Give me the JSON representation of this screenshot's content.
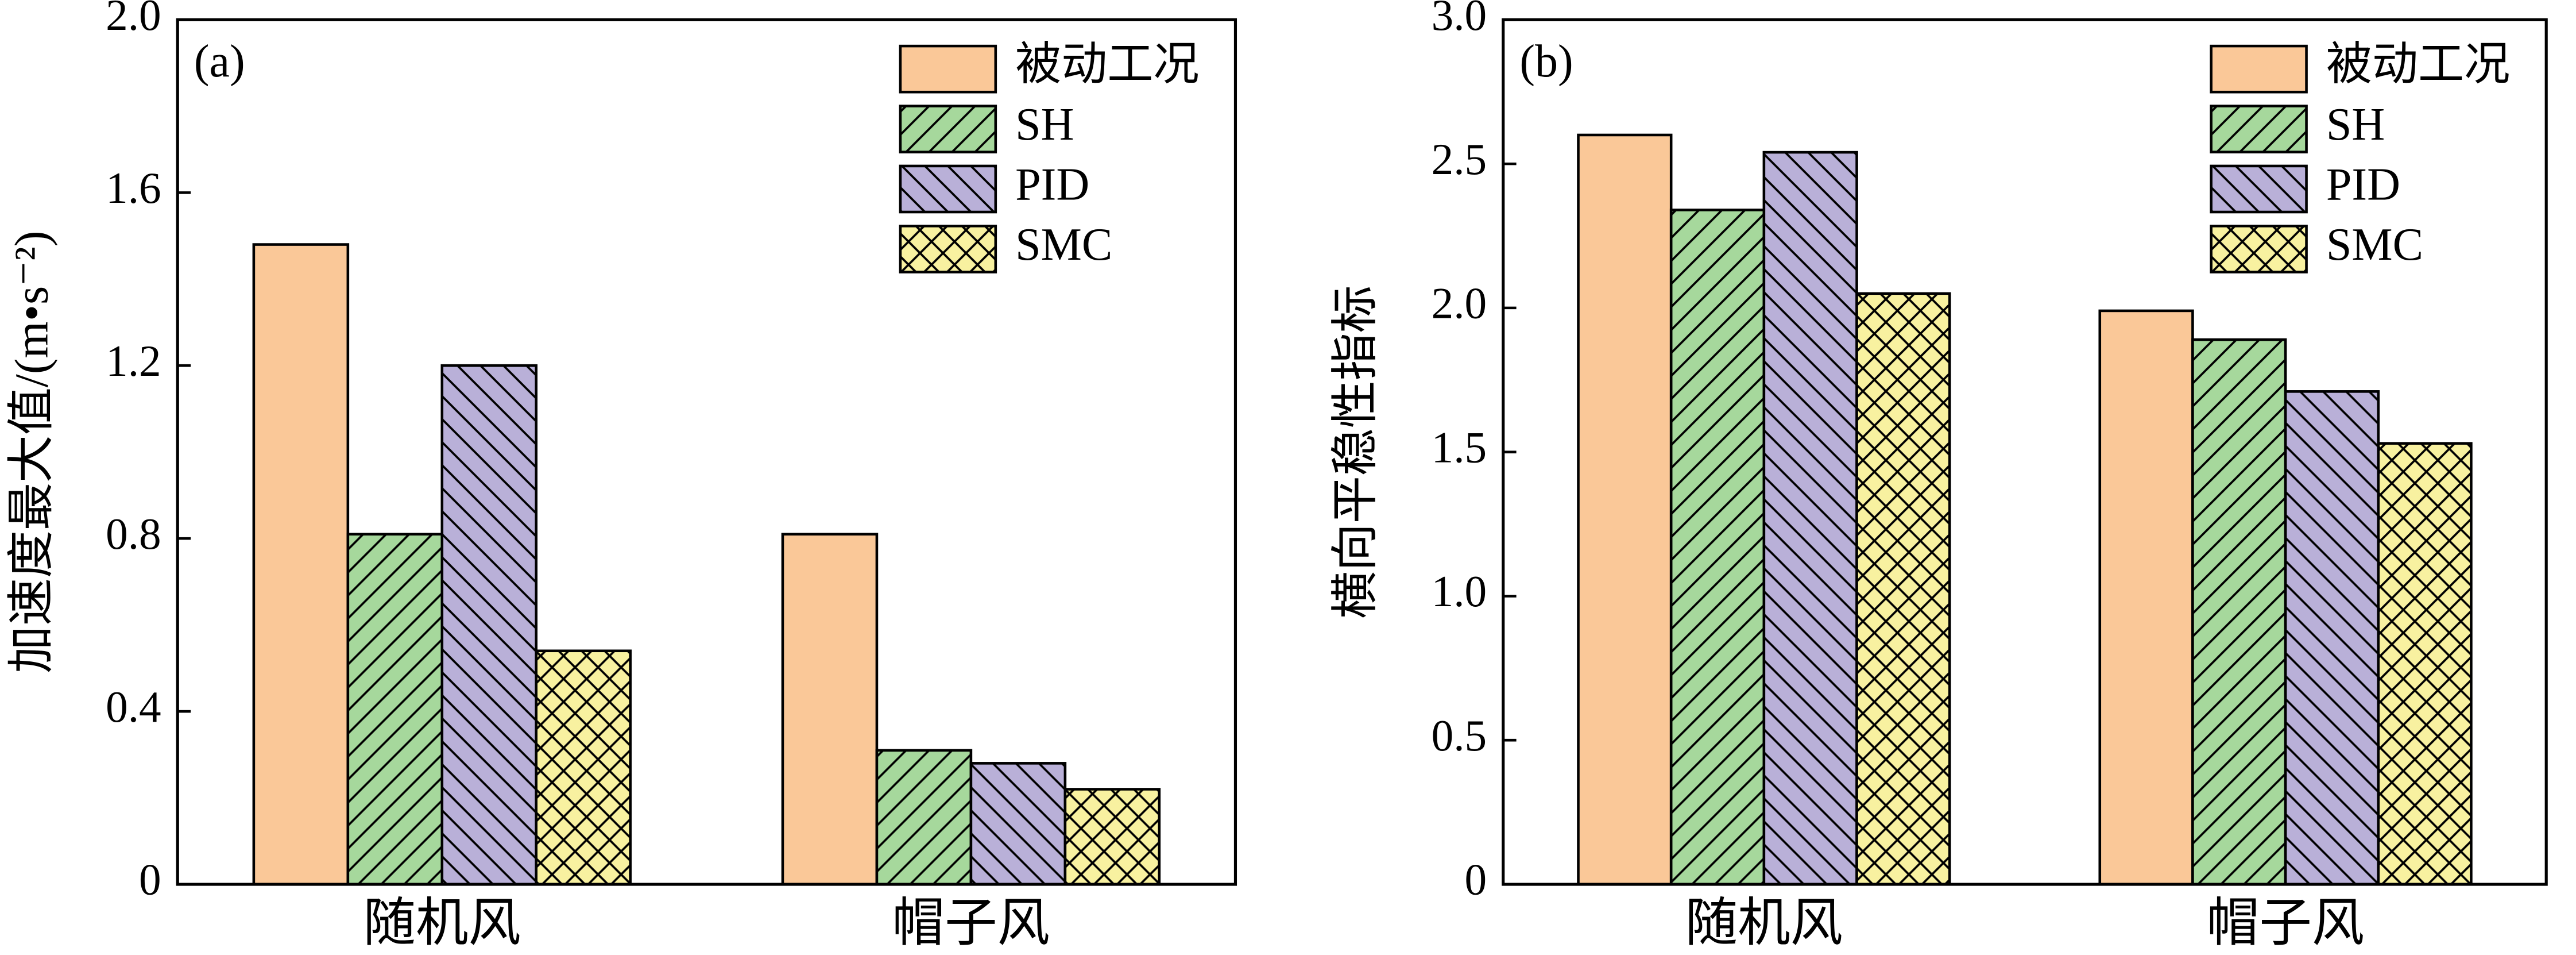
{
  "chart_data": [
    {
      "type": "bar",
      "panel_label": "(a)",
      "y_label": "加速度最大值/(m•s⁻²)",
      "categories": [
        "随机风",
        "帽子风"
      ],
      "series": [
        {
          "name": "被动工况",
          "color": "#fac898",
          "hatch": "none",
          "values": [
            1.48,
            0.81
          ]
        },
        {
          "name": "SH",
          "color": "#a6d89c",
          "hatch": "/",
          "values": [
            0.81,
            0.31
          ]
        },
        {
          "name": "PID",
          "color": "#b9b0d8",
          "hatch": "\\",
          "values": [
            1.2,
            0.28
          ]
        },
        {
          "name": "SMC",
          "color": "#f8f1a0",
          "hatch": "x",
          "values": [
            0.54,
            0.22
          ]
        }
      ],
      "ylim": [
        0,
        2
      ],
      "yticks": [
        0,
        0.4,
        0.8,
        1.2,
        1.6,
        {
          "value": 2,
          "label": "2.0"
        }
      ],
      "legend": "upper right"
    },
    {
      "type": "bar",
      "panel_label": "(b)",
      "y_label": "横向平稳性指标",
      "categories": [
        "随机风",
        "帽子风"
      ],
      "series": [
        {
          "name": "被动工况",
          "color": "#fac898",
          "hatch": "none",
          "values": [
            2.6,
            1.99
          ]
        },
        {
          "name": "SH",
          "color": "#a6d89c",
          "hatch": "/",
          "values": [
            2.34,
            1.89
          ]
        },
        {
          "name": "PID",
          "color": "#b9b0d8",
          "hatch": "\\",
          "values": [
            2.54,
            1.71
          ]
        },
        {
          "name": "SMC",
          "color": "#f8f1a0",
          "hatch": "x",
          "values": [
            2.05,
            1.53
          ]
        }
      ],
      "ylim": [
        0,
        3
      ],
      "yticks": [
        0,
        0.5,
        {
          "value": 1,
          "label": "1.0"
        },
        1.5,
        {
          "value": 2,
          "label": "2.0"
        },
        2.5,
        {
          "value": 3,
          "label": "3.0"
        }
      ],
      "legend": "upper right"
    }
  ]
}
